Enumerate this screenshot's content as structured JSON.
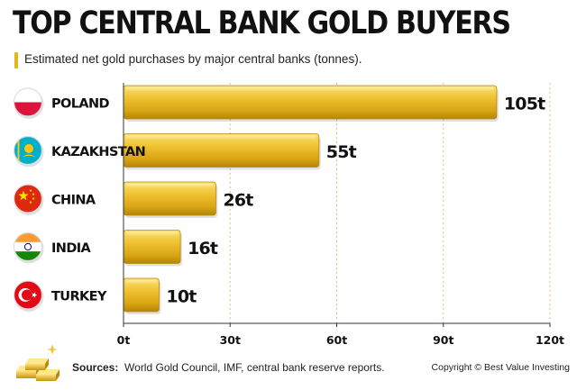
{
  "title": "TOP CENTRAL BANK GOLD BUYERS",
  "subtitle": "Estimated net gold purchases by major central banks (tonnes).",
  "chart_data": {
    "type": "bar",
    "orientation": "horizontal",
    "categories": [
      "POLAND",
      "KAZAKHSTAN",
      "CHINA",
      "INDIA",
      "TURKEY"
    ],
    "values": [
      105,
      55,
      26,
      16,
      10
    ],
    "value_labels": [
      "105t",
      "55t",
      "26t",
      "16t",
      "10t"
    ],
    "xlim": [
      0,
      120
    ],
    "ticks": [
      0,
      30,
      60,
      90,
      120
    ],
    "tick_labels": [
      "0t",
      "30t",
      "60t",
      "90t",
      "120t"
    ],
    "grid": true,
    "bar_color": "#e6b520"
  },
  "flags": [
    {
      "country": "POLAND",
      "icon": "poland-flag-icon"
    },
    {
      "country": "KAZAKHSTAN",
      "icon": "kazakhstan-flag-icon"
    },
    {
      "country": "CHINA",
      "icon": "china-flag-icon"
    },
    {
      "country": "INDIA",
      "icon": "india-flag-icon"
    },
    {
      "country": "TURKEY",
      "icon": "turkey-flag-icon"
    }
  ],
  "footer": {
    "sources_label": "Sources:",
    "sources_text": "World Gold Council, IMF, central bank reserve reports.",
    "copyright": "Copyright © Best Value Investing",
    "icon": "gold-bars-icon"
  }
}
